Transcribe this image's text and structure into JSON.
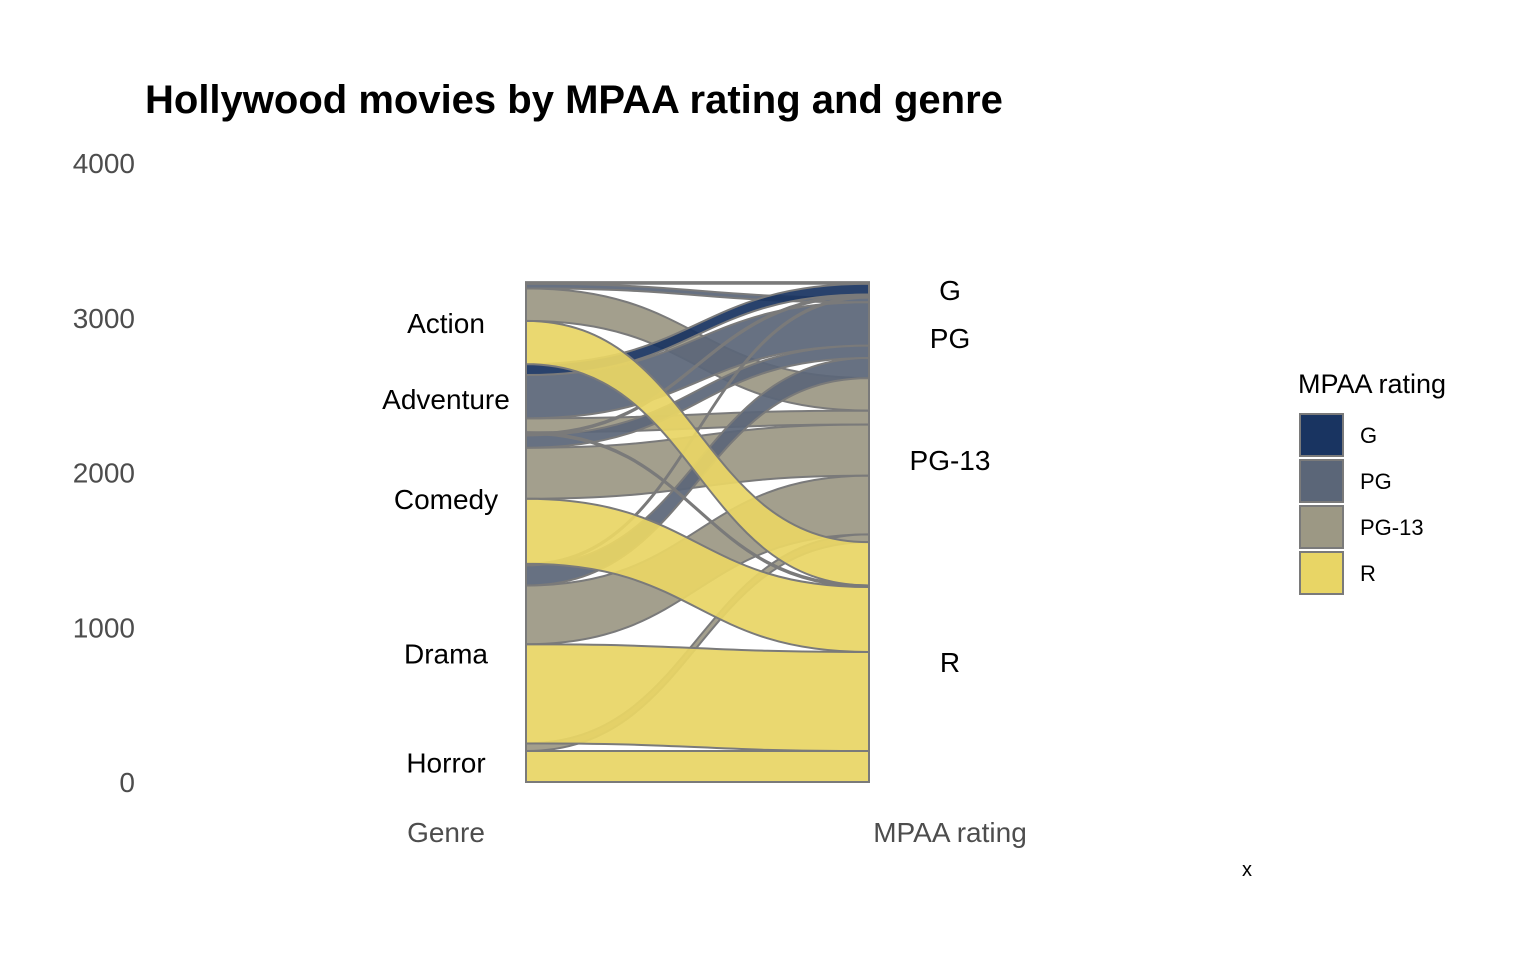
{
  "chart_data": {
    "type": "alluvial",
    "title": "Hollywood movies by MPAA rating and genre",
    "axes": [
      "Genre",
      "MPAA rating"
    ],
    "x_label_corner": "x",
    "ylim": [
      0,
      4000
    ],
    "y_ticks": [
      0,
      1000,
      2000,
      3000,
      4000
    ],
    "grid": false,
    "legend": {
      "title": "MPAA rating",
      "placement": "right",
      "entries": [
        {
          "name": "G",
          "color": "#193461"
        },
        {
          "name": "PG",
          "color": "#5b6678"
        },
        {
          "name": "PG-13",
          "color": "#9c9884"
        },
        {
          "name": "R",
          "color": "#e8d565"
        }
      ]
    },
    "genres": [
      "Action",
      "Adventure",
      "Comedy",
      "Drama",
      "Horror"
    ],
    "ratings": [
      "G",
      "PG",
      "PG-13",
      "R"
    ],
    "flows": [
      {
        "genre": "Action",
        "rating": "G",
        "value": 10
      },
      {
        "genre": "Action",
        "rating": "PG",
        "value": 30
      },
      {
        "genre": "Action",
        "rating": "PG-13",
        "value": 210
      },
      {
        "genre": "Action",
        "rating": "R",
        "value": 280
      },
      {
        "genre": "Adventure",
        "rating": "G",
        "value": 70
      },
      {
        "genre": "Adventure",
        "rating": "PG",
        "value": 280
      },
      {
        "genre": "Adventure",
        "rating": "PG-13",
        "value": 90
      },
      {
        "genre": "Adventure",
        "rating": "R",
        "value": 10
      },
      {
        "genre": "Comedy",
        "rating": "G",
        "value": 10
      },
      {
        "genre": "Comedy",
        "rating": "PG",
        "value": 80
      },
      {
        "genre": "Comedy",
        "rating": "PG-13",
        "value": 330
      },
      {
        "genre": "Comedy",
        "rating": "R",
        "value": 420
      },
      {
        "genre": "Drama",
        "rating": "G",
        "value": 10
      },
      {
        "genre": "Drama",
        "rating": "PG",
        "value": 130
      },
      {
        "genre": "Drama",
        "rating": "PG-13",
        "value": 380
      },
      {
        "genre": "Drama",
        "rating": "R",
        "value": 640
      },
      {
        "genre": "Horror",
        "rating": "PG-13",
        "value": 50
      },
      {
        "genre": "Horror",
        "rating": "R",
        "value": 200
      }
    ]
  }
}
